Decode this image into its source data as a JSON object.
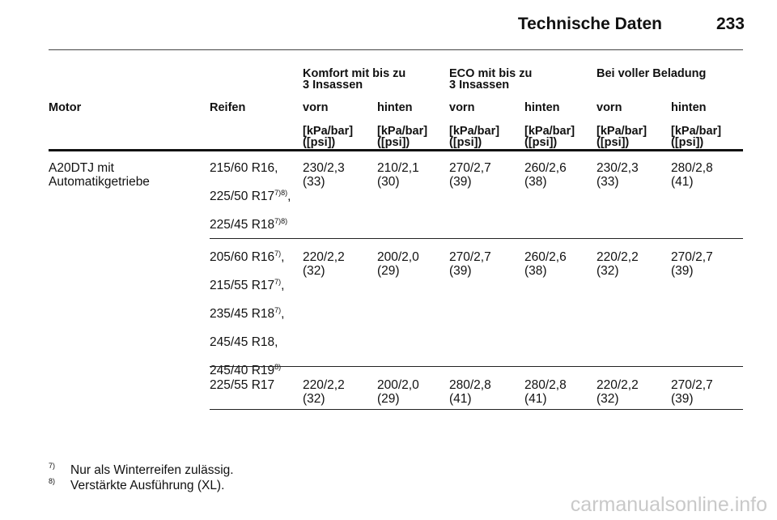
{
  "header": {
    "title": "Technische Daten",
    "page_number": "233"
  },
  "table": {
    "group_headers": [
      {
        "line1": "Komfort mit bis zu",
        "line2": "3 Insassen"
      },
      {
        "line1": "ECO mit bis zu",
        "line2": "3 Insassen"
      },
      {
        "line1": "Bei voller Beladung",
        "line2": ""
      }
    ],
    "col_motor": "Motor",
    "col_tire": "Reifen",
    "sub_headers": [
      "vorn",
      "hinten",
      "vorn",
      "hinten",
      "vorn",
      "hinten"
    ],
    "unit_line1": "[kPa/bar]",
    "unit_line2": "([psi])",
    "motor": {
      "line1": "A20DTJ mit",
      "line2": "Automatikgetriebe"
    },
    "groups": [
      {
        "tires": [
          {
            "text": "215/60 R16,",
            "sup": "",
            "suffix": ""
          },
          {
            "text": "225/50 R17",
            "sup": "7)8)",
            "suffix": ","
          },
          {
            "text": "225/45 R18",
            "sup": "7)8)",
            "suffix": ""
          }
        ],
        "values": [
          {
            "bar": "230/2,3",
            "psi": "(33)"
          },
          {
            "bar": "210/2,1",
            "psi": "(30)"
          },
          {
            "bar": "270/2,7",
            "psi": "(39)"
          },
          {
            "bar": "260/2,6",
            "psi": "(38)"
          },
          {
            "bar": "230/2,3",
            "psi": "(33)"
          },
          {
            "bar": "280/2,8",
            "psi": "(41)"
          }
        ]
      },
      {
        "tires": [
          {
            "text": "205/60 R16",
            "sup": "7)",
            "suffix": ","
          },
          {
            "text": "215/55 R17",
            "sup": "7)",
            "suffix": ","
          },
          {
            "text": "235/45 R18",
            "sup": "7)",
            "suffix": ","
          },
          {
            "text": "245/45 R18,",
            "sup": "",
            "suffix": ""
          },
          {
            "text": "245/40 R19",
            "sup": "8)",
            "suffix": ""
          }
        ],
        "values": [
          {
            "bar": "220/2,2",
            "psi": "(32)"
          },
          {
            "bar": "200/2,0",
            "psi": "(29)"
          },
          {
            "bar": "270/2,7",
            "psi": "(39)"
          },
          {
            "bar": "260/2,6",
            "psi": "(38)"
          },
          {
            "bar": "220/2,2",
            "psi": "(32)"
          },
          {
            "bar": "270/2,7",
            "psi": "(39)"
          }
        ]
      },
      {
        "tires": [
          {
            "text": "225/55 R17",
            "sup": "",
            "suffix": ""
          }
        ],
        "values": [
          {
            "bar": "220/2,2",
            "psi": "(32)"
          },
          {
            "bar": "200/2,0",
            "psi": "(29)"
          },
          {
            "bar": "280/2,8",
            "psi": "(41)"
          },
          {
            "bar": "280/2,8",
            "psi": "(41)"
          },
          {
            "bar": "220/2,2",
            "psi": "(32)"
          },
          {
            "bar": "270/2,7",
            "psi": "(39)"
          }
        ]
      }
    ]
  },
  "footnotes": [
    {
      "mark": "7)",
      "text": "Nur als Winterreifen zulässig."
    },
    {
      "mark": "8)",
      "text": "Verstärkte Ausführung (XL)."
    }
  ],
  "watermark": "carmanualsonline.info"
}
